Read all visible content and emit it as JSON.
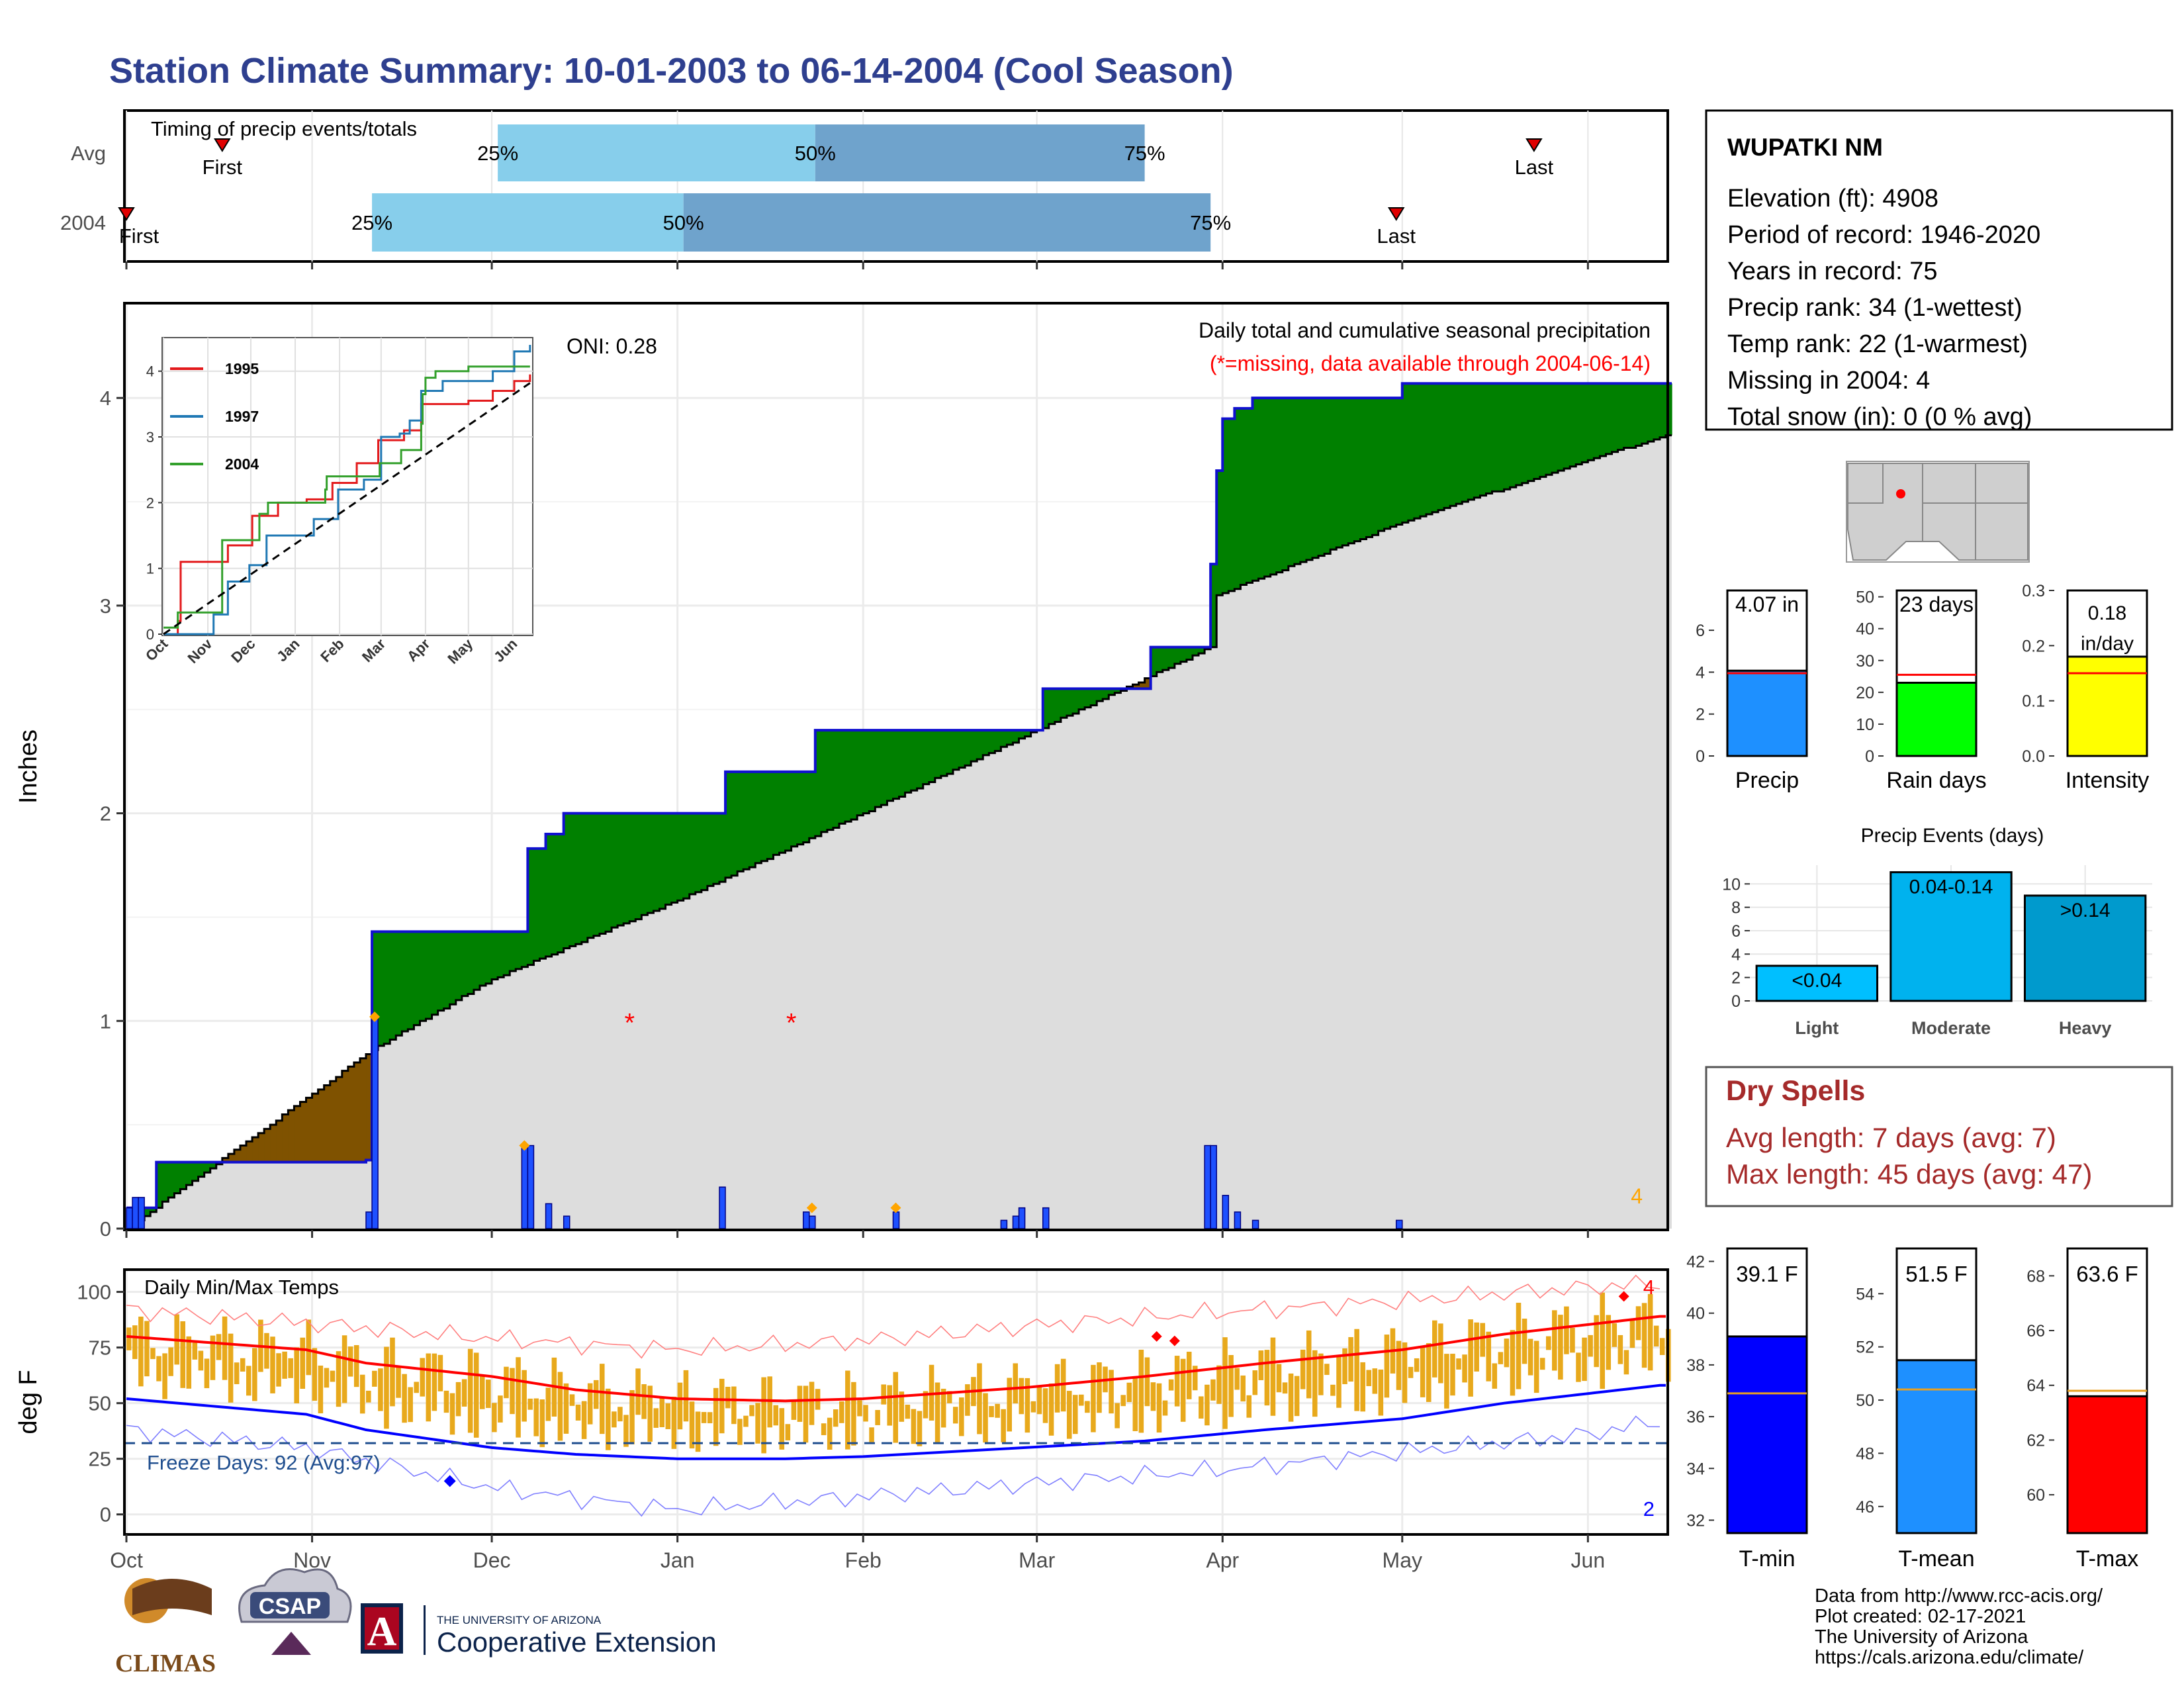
{
  "title": "Station Climate Summary: 10-01-2003 to 06-14-2004 (Cool Season)",
  "station": {
    "name": "WUPATKI NM",
    "lines": [
      "Elevation (ft): 4908",
      "Period of record: 1946-2020",
      "Years in record: 75",
      "Precip rank: 34 (1-wettest)",
      "Temp rank: 22 (1-warmest)",
      "Missing in 2004: 4",
      "Total snow (in): 0 (0 % avg)"
    ]
  },
  "months": [
    "Oct",
    "Nov",
    "Dec",
    "Jan",
    "Feb",
    "Mar",
    "Apr",
    "May",
    "Jun"
  ],
  "colors": {
    "title": "#2e3f8f",
    "above_normal": "#008000",
    "below_normal": "#7f5200",
    "normal_fill": "#dddddd",
    "precip_bar": "#1e50ff",
    "temp_bar": "#e8a91c",
    "dry_spells": "#a52a2a",
    "timing_light": "#87ceeb",
    "timing_dark": "#6fa3cc"
  },
  "chart_data": [
    {
      "type": "bar",
      "title": "Timing of precip events/totals",
      "categories": [
        "Avg",
        "2004"
      ],
      "series": [
        {
          "name": "Avg",
          "first": "2003-10-17",
          "p25": "2003-12-02",
          "p50": "2004-01-24",
          "p75": "2004-03-19",
          "last": "2004-05-23"
        },
        {
          "name": "2004",
          "first": "2003-10-01",
          "p25": "2003-11-11",
          "p50": "2004-01-02",
          "p75": "2004-03-30",
          "last": "2004-04-30"
        }
      ],
      "labels": {
        "first": "First",
        "last": "Last",
        "p25": "25%",
        "p50": "50%",
        "p75": "75%"
      },
      "xlim": [
        "2003-10-01",
        "2004-06-14"
      ]
    },
    {
      "type": "area",
      "title": "Daily total and cumulative seasonal precipitation",
      "subtitle": "(*=missing, data available through 2004-06-14)",
      "ylabel": "Inches",
      "ylim": [
        0,
        4.45
      ],
      "yticks": [
        0,
        1,
        2,
        3,
        4
      ],
      "oni": "ONI: 0.28",
      "missing_count_label": "4",
      "normal_cumulative": {
        "x": [
          "2003-10-01",
          "2003-11-11",
          "2003-12-01",
          "2004-01-01",
          "2004-02-01",
          "2004-03-01",
          "2004-03-30",
          "2004-03-31",
          "2004-04-15",
          "2004-05-01",
          "2004-06-01",
          "2004-06-14"
        ],
        "y": [
          0,
          0.86,
          1.2,
          1.58,
          2.0,
          2.4,
          2.8,
          3.05,
          3.22,
          3.4,
          3.7,
          3.82
        ]
      },
      "observed_cumulative": {
        "x": [
          "2003-10-01",
          "2003-10-06",
          "2003-11-10",
          "2003-11-11",
          "2003-12-06",
          "2003-12-07",
          "2003-12-10",
          "2003-12-13",
          "2004-01-08",
          "2004-01-09",
          "2004-01-22",
          "2004-01-24",
          "2004-02-06",
          "2004-03-01",
          "2004-03-02",
          "2004-03-20",
          "2004-03-29",
          "2004-03-30",
          "2004-03-31",
          "2004-04-01",
          "2004-04-03",
          "2004-04-06",
          "2004-05-01",
          "2004-06-14"
        ],
        "y": [
          0.1,
          0.32,
          0.33,
          1.43,
          1.43,
          1.83,
          1.9,
          2.0,
          2.0,
          2.2,
          2.2,
          2.4,
          2.4,
          2.4,
          2.6,
          2.8,
          2.8,
          3.2,
          3.65,
          3.9,
          3.95,
          4.0,
          4.07,
          4.07
        ]
      },
      "daily_precip": {
        "x": [
          "2003-10-01",
          "2003-10-02",
          "2003-10-03",
          "2003-11-10",
          "2003-11-11",
          "2003-12-06",
          "2003-12-07",
          "2003-12-10",
          "2003-12-13",
          "2004-01-08",
          "2004-01-22",
          "2004-01-23",
          "2004-02-06",
          "2004-02-24",
          "2004-02-26",
          "2004-02-27",
          "2004-03-02",
          "2004-03-29",
          "2004-03-30",
          "2004-04-01",
          "2004-04-03",
          "2004-04-06",
          "2004-04-30"
        ],
        "y": [
          0.1,
          0.15,
          0.15,
          0.08,
          1.02,
          0.4,
          0.4,
          0.12,
          0.06,
          0.2,
          0.08,
          0.06,
          0.08,
          0.04,
          0.06,
          0.1,
          0.1,
          0.4,
          0.4,
          0.16,
          0.08,
          0.04,
          0.04
        ]
      },
      "missing_markers": {
        "x": [
          "2003-12-24",
          "2004-01-20"
        ],
        "y": [
          1,
          1
        ]
      },
      "inset": {
        "type": "line",
        "yticks": [
          0,
          1,
          2,
          3,
          4
        ],
        "xticks": [
          "Oct",
          "Nov",
          "Dec",
          "Jan",
          "Feb",
          "Mar",
          "Apr",
          "May",
          "Jun"
        ],
        "series": [
          {
            "name": "1995",
            "color": "#e31a1c",
            "x": [
              0,
              10,
              12,
              30,
              45,
              62,
              80,
              100,
              118,
              135,
              150,
              168,
              180,
              195,
              213,
              230,
              245,
              256
            ],
            "y": [
              0,
              0.2,
              1.1,
              1.1,
              1.35,
              1.8,
              2.0,
              2.05,
              2.3,
              2.6,
              2.95,
              3.1,
              3.5,
              3.5,
              3.55,
              3.7,
              3.85,
              3.95
            ]
          },
          {
            "name": "1997",
            "color": "#1f78b4",
            "x": [
              0,
              20,
              35,
              45,
              60,
              72,
              85,
              105,
              122,
              140,
              152,
              165,
              172,
              180,
              195,
              210,
              230,
              245,
              256
            ],
            "y": [
              0,
              0,
              0.3,
              0.8,
              1.05,
              1.5,
              1.5,
              1.75,
              2.2,
              2.35,
              3.0,
              3.05,
              3.25,
              3.7,
              3.85,
              3.85,
              4.0,
              4.3,
              4.4
            ]
          },
          {
            "name": "2004",
            "color": "#33a02c",
            "x": [
              0,
              10,
              40,
              41,
              66,
              67,
              73,
              80,
              100,
              113,
              114,
              128,
              150,
              151,
              166,
              180,
              181,
              183,
              190,
              213,
              256
            ],
            "y": [
              0.1,
              0.33,
              0.33,
              1.43,
              1.43,
              1.83,
              2.0,
              2.0,
              2.0,
              2.2,
              2.4,
              2.4,
              2.4,
              2.6,
              2.8,
              3.2,
              3.65,
              3.9,
              4.0,
              4.07,
              4.07
            ]
          },
          {
            "name": "normal",
            "color": "#000000",
            "dash": true,
            "x": [
              0,
              256
            ],
            "y": [
              0,
              3.82
            ]
          }
        ]
      }
    },
    {
      "type": "bar",
      "title": "",
      "categories": [
        "Precip",
        "Rain days",
        "Intensity"
      ],
      "values": [
        4.07,
        23,
        0.18
      ],
      "value_labels": [
        "4.07 in",
        "23 days",
        "0.18 in/day"
      ],
      "averages": [
        3.95,
        25.5,
        0.15
      ],
      "ylims": [
        [
          0,
          7.9
        ],
        [
          0,
          52
        ],
        [
          0,
          0.3
        ]
      ],
      "yticks": [
        [
          0,
          2,
          4,
          6
        ],
        [
          0,
          10,
          20,
          30,
          40,
          50
        ],
        [
          0.0,
          0.1,
          0.2,
          0.3
        ]
      ],
      "ytick_labels": [
        [
          "0",
          "2",
          "4",
          "6"
        ],
        [
          "0",
          "10",
          "20",
          "30",
          "40",
          "50"
        ],
        [
          "0.0",
          "0.1",
          "0.2",
          "0.3"
        ]
      ],
      "bar_colors": [
        "#1e90ff",
        "#00ff00",
        "#ffff00"
      ]
    },
    {
      "type": "bar",
      "title": "Precip Events (days)",
      "categories": [
        "Light",
        "Moderate",
        "Heavy"
      ],
      "values": [
        3,
        11,
        9
      ],
      "value_labels": [
        "<0.04",
        "0.04-0.14",
        ">0.14"
      ],
      "ylim": [
        0,
        11.6
      ],
      "yticks": [
        0,
        2,
        4,
        6,
        8,
        10
      ],
      "bar_colors": [
        "#00bfff",
        "#00b2ee",
        "#009acd"
      ]
    },
    {
      "type": "line",
      "title": "Daily Min/Max Temps",
      "ylabel": "deg F",
      "ylim": [
        -9,
        110
      ],
      "yticks": [
        0,
        25,
        50,
        75,
        100
      ],
      "freeze_label": "Freeze Days: 92 (Avg:97)",
      "freeze_line": 32,
      "count_max_label": "4",
      "count_min_label": "2",
      "normal_max": {
        "x": [
          0,
          30,
          40,
          61,
          75,
          92,
          110,
          123,
          150,
          170,
          190,
          213,
          230,
          256
        ],
        "y": [
          80,
          74,
          68,
          62,
          56,
          52,
          51,
          52,
          57,
          62,
          68,
          74,
          81,
          89
        ]
      },
      "normal_min": {
        "x": [
          0,
          30,
          40,
          61,
          75,
          92,
          110,
          123,
          150,
          170,
          190,
          213,
          230,
          256
        ],
        "y": [
          52,
          45,
          38,
          30,
          27,
          25,
          25,
          26,
          30,
          33,
          38,
          43,
          50,
          58
        ]
      },
      "record_max": {
        "x": [
          0,
          30,
          61,
          92,
          123,
          152,
          183,
          213,
          244,
          256
        ],
        "y": [
          92,
          86,
          79,
          74,
          78,
          85,
          91,
          96,
          102,
          104
        ]
      },
      "record_min": {
        "x": [
          0,
          30,
          61,
          92,
          123,
          152,
          183,
          213,
          244,
          256
        ],
        "y": [
          38,
          30,
          12,
          2,
          8,
          14,
          20,
          28,
          36,
          42
        ]
      }
    },
    {
      "type": "bar",
      "title": "",
      "categories": [
        "T-min",
        "T-mean",
        "T-max"
      ],
      "values": [
        39.1,
        51.5,
        63.6
      ],
      "value_labels": [
        "39.1 F",
        "51.5 F",
        "63.6 F"
      ],
      "averages": [
        36.9,
        50.4,
        63.8
      ],
      "ylims": [
        [
          31.5,
          42.5
        ],
        [
          45,
          55.7
        ],
        [
          58.6,
          69
        ]
      ],
      "yticks": [
        [
          32,
          34,
          36,
          38,
          40,
          42
        ],
        [
          46,
          48,
          50,
          52,
          54
        ],
        [
          60,
          62,
          64,
          66,
          68
        ]
      ],
      "bar_colors": [
        "#0000ff",
        "#1e90ff",
        "#ff0000"
      ]
    }
  ],
  "dry_spells": {
    "title": "Dry Spells",
    "avg": "Avg length: 7 days (avg: 7)",
    "max": "Max length: 45 days (avg: 47)"
  },
  "footer": {
    "logos": [
      "CLIMAS",
      "CSAP",
      "THE UNIVERSITY OF ARIZONA",
      "Cooperative Extension"
    ],
    "lines": [
      "Data from http://www.rcc-acis.org/",
      "Plot created: 02-17-2021",
      "The University of Arizona",
      "https://cals.arizona.edu/climate/"
    ]
  }
}
